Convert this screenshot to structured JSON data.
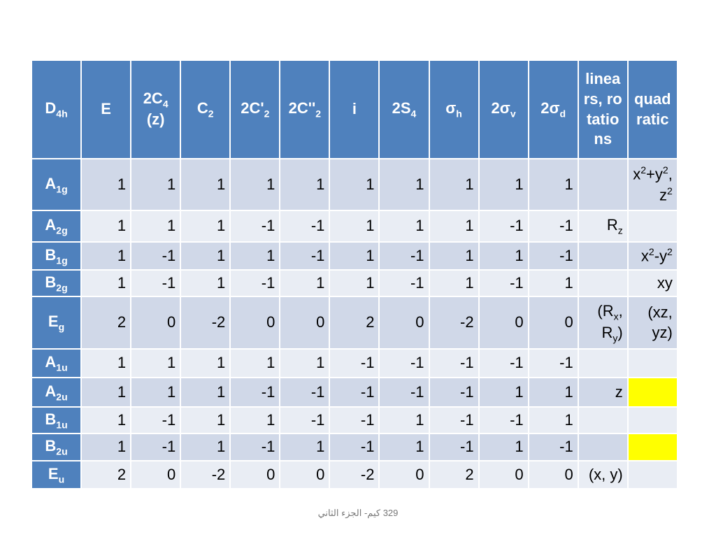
{
  "table": {
    "header": [
      [
        {
          "text": "D"
        },
        {
          "sub": "4h"
        }
      ],
      "E",
      [
        {
          "text": "2C"
        },
        {
          "sub": "4"
        },
        {
          "text": " (z)"
        }
      ],
      [
        {
          "text": "C"
        },
        {
          "sub": "2"
        }
      ],
      [
        {
          "text": "2C'"
        },
        {
          "sub": "2"
        }
      ],
      [
        {
          "text": "2C''"
        },
        {
          "sub": "2"
        }
      ],
      "i",
      [
        {
          "text": "2S"
        },
        {
          "sub": "4"
        }
      ],
      [
        {
          "text": "σ"
        },
        {
          "sub": "h"
        }
      ],
      [
        {
          "text": "2σ"
        },
        {
          "sub": "v"
        }
      ],
      [
        {
          "text": "2σ"
        },
        {
          "sub": "d"
        }
      ],
      "linears, rotations",
      "quadratic"
    ],
    "rows": [
      [
        [
          {
            "text": "A"
          },
          {
            "sub": "1g"
          }
        ],
        1,
        1,
        1,
        1,
        1,
        1,
        1,
        1,
        1,
        1,
        null,
        [
          {
            "text": "x"
          },
          {
            "sup": "2"
          },
          {
            "text": "+y"
          },
          {
            "sup": "2"
          },
          {
            "text": ", z"
          },
          {
            "sup": "2"
          }
        ]
      ],
      [
        [
          {
            "text": "A"
          },
          {
            "sub": "2g"
          }
        ],
        1,
        1,
        1,
        -1,
        -1,
        1,
        1,
        1,
        -1,
        -1,
        [
          {
            "text": "R"
          },
          {
            "sub": "z"
          }
        ],
        null
      ],
      [
        [
          {
            "text": "B"
          },
          {
            "sub": "1g"
          }
        ],
        1,
        -1,
        1,
        1,
        -1,
        1,
        -1,
        1,
        1,
        -1,
        null,
        [
          {
            "text": "x"
          },
          {
            "sup": "2"
          },
          {
            "text": "-y"
          },
          {
            "sup": "2"
          }
        ]
      ],
      [
        [
          {
            "text": "B"
          },
          {
            "sub": "2g"
          }
        ],
        1,
        -1,
        1,
        -1,
        1,
        1,
        -1,
        1,
        -1,
        1,
        null,
        "xy"
      ],
      [
        [
          {
            "text": "E"
          },
          {
            "sub": "g"
          }
        ],
        2,
        0,
        -2,
        0,
        0,
        2,
        0,
        -2,
        0,
        0,
        [
          {
            "text": "(R"
          },
          {
            "sub": "x"
          },
          {
            "text": ", R"
          },
          {
            "sub": "y"
          },
          {
            "text": ")"
          }
        ],
        "(xz, yz)"
      ],
      [
        [
          {
            "text": "A"
          },
          {
            "sub": "1u"
          }
        ],
        1,
        1,
        1,
        1,
        1,
        -1,
        -1,
        -1,
        -1,
        -1,
        null,
        null
      ],
      [
        [
          {
            "text": "A"
          },
          {
            "sub": "2u"
          }
        ],
        1,
        1,
        1,
        -1,
        -1,
        -1,
        -1,
        -1,
        1,
        1,
        "z",
        null
      ],
      [
        [
          {
            "text": "B"
          },
          {
            "sub": "1u"
          }
        ],
        1,
        -1,
        1,
        1,
        -1,
        -1,
        1,
        -1,
        -1,
        1,
        null,
        null
      ],
      [
        [
          {
            "text": "B"
          },
          {
            "sub": "2u"
          }
        ],
        1,
        -1,
        1,
        -1,
        1,
        -1,
        1,
        -1,
        1,
        -1,
        null,
        null
      ],
      [
        [
          {
            "text": "E"
          },
          {
            "sub": "u"
          }
        ],
        2,
        0,
        -2,
        0,
        0,
        -2,
        0,
        2,
        0,
        0,
        "(x, y)",
        null
      ]
    ]
  },
  "footer": "329 كيم- الجزء الثاني"
}
